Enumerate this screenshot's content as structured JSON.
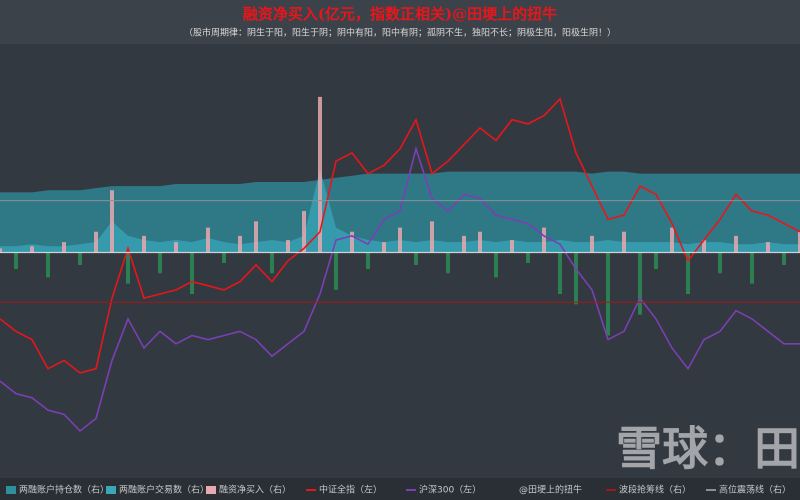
{
  "chart_data": {
    "type": "combo",
    "title": "融资净买入(亿元，指数正相关)@田埂上的扭牛",
    "subtitle": "（股市周期律：阴生于阳，阳生于阴；阴中有阳，阳中有阴；孤阴不生，独阳不长；阴极生阳，阳极生阴！）",
    "watermark": "雪球：田",
    "ylim": [
      0,
      100
    ],
    "y2lim": [
      -100,
      100
    ],
    "series": [
      {
        "name": "两融账户持仓数（右）",
        "kind": "area",
        "axis": "y2",
        "color": "#2f8f9d",
        "values": [
          29,
          29,
          29,
          30,
          30,
          30,
          31,
          32,
          32,
          32,
          32,
          33,
          33,
          33,
          33,
          33,
          34,
          34,
          34,
          34,
          35,
          36,
          37,
          38,
          38,
          38,
          38,
          38,
          39,
          39,
          39,
          39,
          39,
          39,
          39,
          39,
          39,
          38,
          39,
          39,
          38,
          38,
          38,
          38,
          38,
          38,
          38,
          38,
          38,
          38,
          38
        ]
      },
      {
        "name": "两融账户交易数（右）",
        "kind": "area",
        "axis": "y2",
        "color": "#3aa6b9",
        "values": [
          3,
          3,
          4,
          3,
          3,
          4,
          5,
          15,
          8,
          6,
          5,
          6,
          5,
          7,
          5,
          4,
          5,
          6,
          5,
          8,
          40,
          12,
          8,
          6,
          5,
          6,
          5,
          6,
          5,
          5,
          6,
          5,
          6,
          5,
          5,
          6,
          5,
          5,
          6,
          5,
          5,
          5,
          5,
          4,
          5,
          5,
          4,
          4,
          5,
          4,
          4
        ]
      },
      {
        "name": "融资净买入（右）",
        "kind": "bar",
        "axis": "y2",
        "color": "#e8a9b0",
        "negative_color": "#2e8b57",
        "values": [
          2,
          -8,
          3,
          -12,
          5,
          -6,
          10,
          30,
          -15,
          8,
          -10,
          5,
          -20,
          12,
          -5,
          8,
          15,
          -10,
          6,
          20,
          75,
          -18,
          10,
          -8,
          5,
          12,
          -6,
          15,
          -10,
          8,
          10,
          -12,
          6,
          -5,
          12,
          -20,
          -25,
          8,
          -40,
          10,
          -30,
          -8,
          12,
          -20,
          6,
          -10,
          8,
          -15,
          5,
          -6,
          10
        ]
      },
      {
        "name": "中证全指（左）",
        "kind": "line",
        "axis": "y",
        "color": "#e8161b",
        "values": [
          34,
          31,
          29,
          22,
          24,
          21,
          22,
          39,
          51,
          39,
          40,
          41,
          43,
          42,
          41,
          43,
          47,
          43,
          48,
          51,
          55,
          72,
          74,
          69,
          71,
          75,
          82,
          69,
          72,
          76,
          80,
          77,
          82,
          81,
          83,
          87,
          74,
          66,
          58,
          59,
          66,
          64,
          57,
          48,
          53,
          58,
          64,
          60,
          59,
          57,
          55
        ]
      },
      {
        "name": "沪深300（左）",
        "kind": "line",
        "axis": "y",
        "color": "#7b3fb5",
        "values": [
          19,
          16,
          15,
          12,
          11,
          7,
          10,
          24,
          34,
          27,
          31,
          28,
          30,
          29,
          30,
          31,
          29,
          25,
          28,
          31,
          40,
          53,
          54,
          52,
          58,
          60,
          75,
          63,
          60,
          64,
          63,
          59,
          58,
          57,
          54,
          52,
          46,
          41,
          29,
          31,
          39,
          34,
          27,
          22,
          29,
          31,
          36,
          34,
          31,
          28,
          28
        ]
      }
    ],
    "legend_note": "@田埂上的扭牛",
    "hlines": [
      {
        "name": "波段抢筹线（右）",
        "color": "#a01818",
        "value": -24
      },
      {
        "name": "高位震荡线（右）",
        "color": "#8a9099",
        "value": 25
      }
    ]
  }
}
